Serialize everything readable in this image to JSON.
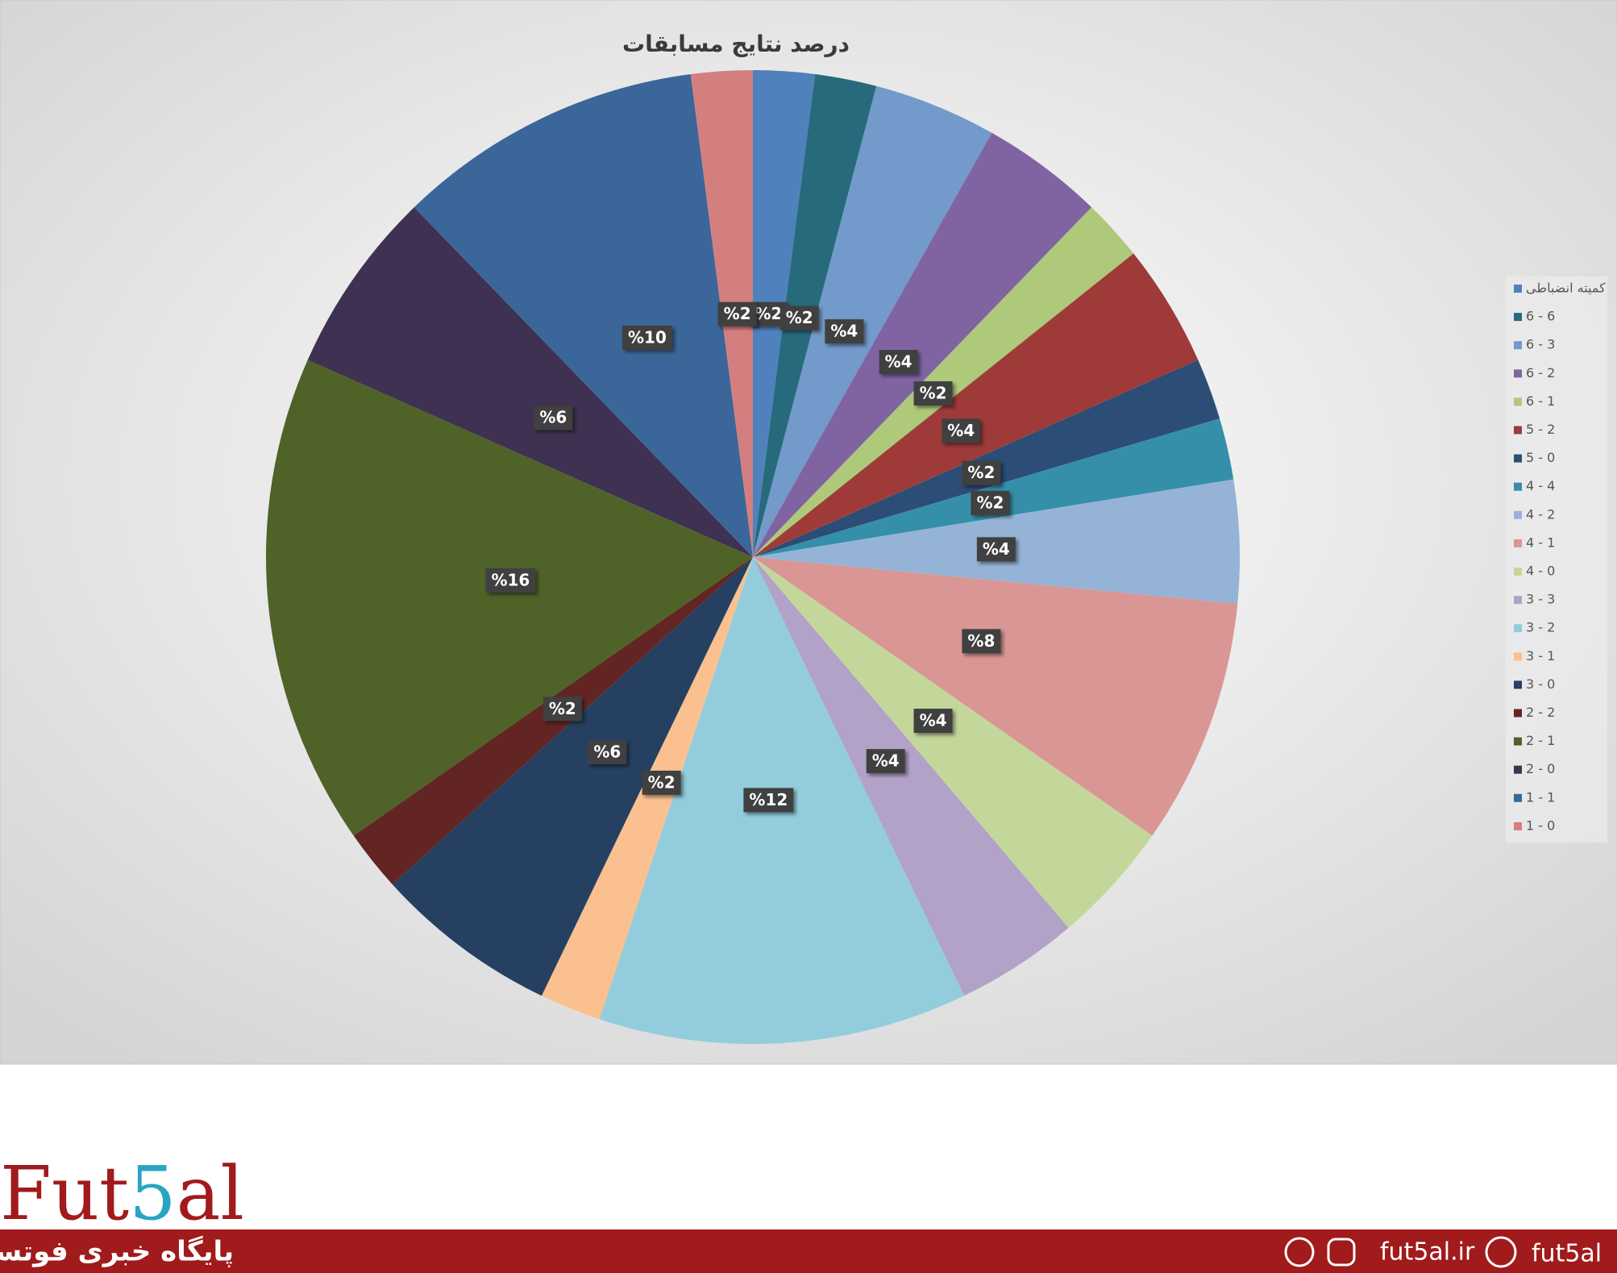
{
  "chart_data": {
    "type": "pie",
    "title": "درصد نتایج مسابقات",
    "categories": [
      "کمیته انضباطی",
      "6 - 6",
      "6 - 3",
      "6 - 2",
      "6 - 1",
      "5 - 2",
      "5 - 0",
      "4 - 4",
      "4 - 2",
      "4 - 1",
      "4 - 0",
      "3 - 3",
      "3 - 2",
      "3 - 1",
      "3 - 0",
      "2 - 2",
      "2 - 1",
      "2 - 0",
      "1 - 1",
      "1 - 0"
    ],
    "values": [
      2,
      2,
      4,
      4,
      2,
      4,
      2,
      2,
      4,
      8,
      4,
      4,
      12,
      2,
      6,
      2,
      16,
      6,
      10,
      2
    ],
    "value_labels": [
      "%2",
      "%2",
      "%4",
      "%4",
      "%2",
      "%4",
      "%2",
      "%2",
      "%4",
      "%8",
      "%4",
      "%4",
      "%12",
      "%2",
      "%6",
      "%2",
      "%16",
      "%6",
      "%10",
      "%2"
    ],
    "colors": [
      "#4f81bd",
      "#276a7c",
      "#729aca",
      "#8064a2",
      "#afc97a",
      "#9e3b39",
      "#2c4d75",
      "#358fa9",
      "#95b3d7",
      "#d99694",
      "#c4d79b",
      "#b2a2c7",
      "#93cddd",
      "#fac090",
      "#254061",
      "#632523",
      "#4f6228",
      "#3f3151",
      "#3a6699",
      "#d47f7f"
    ],
    "legend": "right"
  },
  "footer": {
    "logo": [
      "Fut",
      "5",
      "al"
    ],
    "tagline": "پایگاه خبری فوتسال",
    "site": "fut5al.ir",
    "handle": "fut5al"
  }
}
